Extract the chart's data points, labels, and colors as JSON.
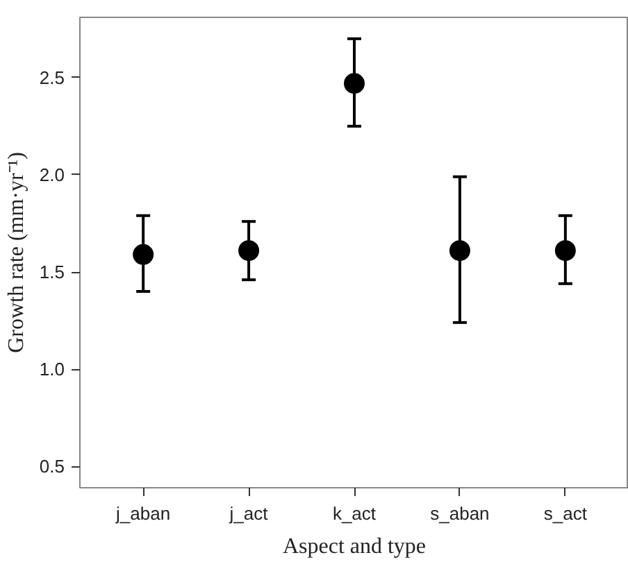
{
  "chart_data": {
    "type": "scatter",
    "xlabel": "Aspect and type",
    "ylabel": "Growth rate (mm·yr⁻¹)",
    "categories": [
      "j_aban",
      "j_act",
      "k_act",
      "s_aban",
      "s_act"
    ],
    "values": [
      1.59,
      1.61,
      2.47,
      1.61,
      1.61
    ],
    "errors": [
      [
        1.4,
        1.79
      ],
      [
        1.46,
        1.76
      ],
      [
        2.25,
        2.7
      ],
      [
        1.24,
        1.99
      ],
      [
        1.44,
        1.79
      ]
    ],
    "color": "#000000",
    "marker": "circle",
    "ylim": [
      0.39,
      2.81
    ],
    "yticks": [
      0.5,
      {
        "value": 1,
        "label": "1.0"
      },
      1.5,
      {
        "value": 2,
        "label": "2.0"
      },
      2.5
    ],
    "grid": false
  }
}
